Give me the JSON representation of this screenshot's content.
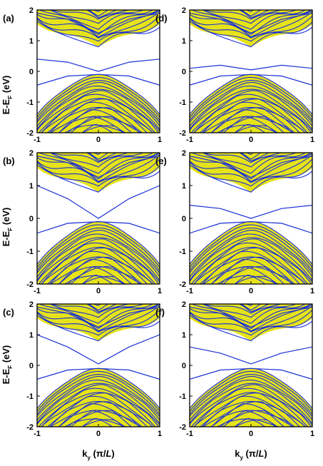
{
  "figure": {
    "ylabel_main": "E-E",
    "ylabel_sub": "F",
    "ylabel_unit": " (eV)",
    "xlabel_main": "k",
    "xlabel_sub": "y",
    "xlabel_unit_prefix": " (π/",
    "xlabel_unit_var": "L",
    "xlabel_unit_suffix": ")"
  },
  "colors": {
    "band_lines": "#1a2fd6",
    "band_fill": "#e6e31a",
    "axes": "#000000",
    "background": "#ffffff"
  },
  "chart_data": [
    {
      "type": "line",
      "panel": "(a)",
      "xlim": [
        -1,
        1
      ],
      "ylim": [
        -2,
        2
      ],
      "xticks": [
        "-1",
        "0",
        "1"
      ],
      "yticks": [
        "-2",
        "-1",
        "0",
        "1",
        "2"
      ],
      "series": [
        {
          "x": [
            -1,
            -0.5,
            0,
            0.5,
            1
          ],
          "y": [
            0.4,
            0.3,
            0.0,
            0.3,
            0.4
          ]
        },
        {
          "x": [
            -1,
            -0.5,
            0,
            0.5,
            1
          ],
          "y": [
            -0.45,
            -0.15,
            -0.1,
            -0.15,
            -0.45
          ]
        },
        {
          "x": [
            -1,
            -0.5,
            0,
            0.5,
            1
          ],
          "y": [
            1.9,
            1.7,
            1.25,
            1.7,
            1.9
          ]
        }
      ]
    },
    {
      "type": "line",
      "panel": "(d)",
      "xlim": [
        -1,
        1
      ],
      "ylim": [
        -2,
        2
      ],
      "xticks": [
        "-1",
        "0",
        "1"
      ],
      "yticks": [
        "-2",
        "-1",
        "0",
        "1",
        "2"
      ],
      "series": [
        {
          "x": [
            -1,
            -0.5,
            0,
            0.5,
            1
          ],
          "y": [
            0.1,
            0.2,
            0.05,
            0.2,
            0.1
          ]
        },
        {
          "x": [
            -1,
            -0.5,
            0,
            0.5,
            1
          ],
          "y": [
            -0.45,
            -0.15,
            -0.1,
            -0.15,
            -0.45
          ]
        },
        {
          "x": [
            -1,
            -0.5,
            0,
            0.5,
            1
          ],
          "y": [
            1.9,
            1.7,
            1.25,
            1.7,
            1.9
          ]
        }
      ]
    },
    {
      "type": "line",
      "panel": "(b)",
      "xlim": [
        -1,
        1
      ],
      "ylim": [
        -2,
        2
      ],
      "xticks": [
        "-1",
        "0",
        "1"
      ],
      "yticks": [
        "-2",
        "-1",
        "0",
        "1",
        "2"
      ],
      "series": [
        {
          "x": [
            -1,
            -0.5,
            0,
            0.5,
            1
          ],
          "y": [
            1.0,
            0.6,
            0.0,
            0.6,
            1.0
          ]
        },
        {
          "x": [
            -1,
            -0.5,
            0,
            0.5,
            1
          ],
          "y": [
            -0.45,
            -0.15,
            -0.1,
            -0.15,
            -0.45
          ]
        },
        {
          "x": [
            -1,
            -0.5,
            0,
            0.5,
            1
          ],
          "y": [
            1.9,
            1.7,
            1.25,
            1.7,
            1.9
          ]
        }
      ]
    },
    {
      "type": "line",
      "panel": "(e)",
      "xlim": [
        -1,
        1
      ],
      "ylim": [
        -2,
        2
      ],
      "xticks": [
        "-1",
        "0",
        "1"
      ],
      "yticks": [
        "-2",
        "-1",
        "0",
        "1",
        "2"
      ],
      "series": [
        {
          "x": [
            -1,
            -0.5,
            0,
            0.5,
            1
          ],
          "y": [
            0.4,
            0.3,
            0.0,
            0.3,
            0.4
          ]
        },
        {
          "x": [
            -1,
            -0.5,
            0,
            0.5,
            1
          ],
          "y": [
            -0.45,
            -0.15,
            -0.1,
            -0.15,
            -0.45
          ]
        },
        {
          "x": [
            -1,
            -0.5,
            0,
            0.5,
            1
          ],
          "y": [
            1.9,
            1.7,
            1.25,
            1.7,
            1.9
          ]
        }
      ]
    },
    {
      "type": "line",
      "panel": "(c)",
      "xlim": [
        -1,
        1
      ],
      "ylim": [
        -2,
        2
      ],
      "xticks": [
        "-1",
        "0",
        "1"
      ],
      "yticks": [
        "-2",
        "-1",
        "0",
        "1",
        "2"
      ],
      "series": [
        {
          "x": [
            -1,
            -0.5,
            0,
            0.5,
            1
          ],
          "y": [
            1.0,
            0.6,
            0.05,
            0.6,
            1.0
          ]
        },
        {
          "x": [
            -1,
            -0.5,
            0,
            0.5,
            1
          ],
          "y": [
            -0.45,
            -0.15,
            -0.1,
            -0.15,
            -0.45
          ]
        },
        {
          "x": [
            -1,
            -0.5,
            0,
            0.5,
            1
          ],
          "y": [
            1.9,
            1.7,
            1.25,
            1.7,
            1.9
          ]
        }
      ]
    },
    {
      "type": "line",
      "panel": "(f)",
      "xlim": [
        -1,
        1
      ],
      "ylim": [
        -2,
        2
      ],
      "xticks": [
        "-1",
        "0",
        "1"
      ],
      "yticks": [
        "-2",
        "-1",
        "0",
        "1",
        "2"
      ],
      "series": [
        {
          "x": [
            -1,
            -0.5,
            0,
            0.5,
            1
          ],
          "y": [
            0.6,
            0.4,
            0.05,
            0.4,
            0.6
          ]
        },
        {
          "x": [
            -1,
            -0.5,
            0,
            0.5,
            1
          ],
          "y": [
            -0.45,
            -0.15,
            -0.1,
            -0.15,
            -0.45
          ]
        },
        {
          "x": [
            -1,
            -0.5,
            0,
            0.5,
            1
          ],
          "y": [
            1.9,
            1.7,
            1.25,
            1.7,
            1.9
          ]
        }
      ]
    }
  ]
}
